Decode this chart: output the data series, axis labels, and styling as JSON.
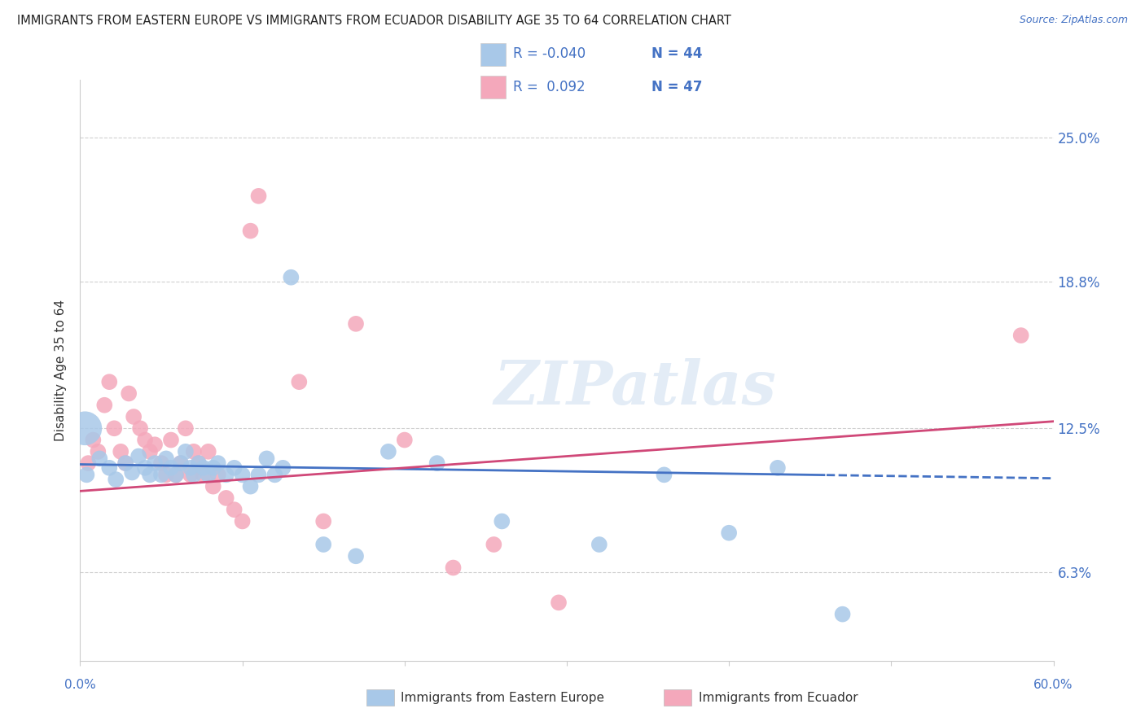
{
  "title": "IMMIGRANTS FROM EASTERN EUROPE VS IMMIGRANTS FROM ECUADOR DISABILITY AGE 35 TO 64 CORRELATION CHART",
  "source": "Source: ZipAtlas.com",
  "ylabel": "Disability Age 35 to 64",
  "ytick_labels": [
    "6.3%",
    "12.5%",
    "18.8%",
    "25.0%"
  ],
  "ytick_values": [
    6.3,
    12.5,
    18.8,
    25.0
  ],
  "xlim": [
    0.0,
    60.0
  ],
  "ylim": [
    2.5,
    27.5
  ],
  "legend_blue_r": "-0.040",
  "legend_blue_n": "44",
  "legend_pink_r": "0.092",
  "legend_pink_n": "47",
  "blue_color": "#a8c8e8",
  "pink_color": "#f4a8bb",
  "blue_line_color": "#4472c4",
  "pink_line_color": "#d04878",
  "watermark_text": "ZIPatlas",
  "blue_scatter_x": [
    0.4,
    1.2,
    1.8,
    2.2,
    2.8,
    3.2,
    3.6,
    4.0,
    4.3,
    4.6,
    5.0,
    5.3,
    5.6,
    5.9,
    6.2,
    6.5,
    6.8,
    7.0,
    7.3,
    7.6,
    7.9,
    8.2,
    8.5,
    9.0,
    9.5,
    10.0,
    10.5,
    11.0,
    11.5,
    12.0,
    12.5,
    13.0,
    15.0,
    17.0,
    19.0,
    22.0,
    26.0,
    32.0,
    36.0,
    40.0,
    43.0,
    47.0,
    0.3
  ],
  "blue_scatter_y": [
    10.5,
    11.2,
    10.8,
    10.3,
    11.0,
    10.6,
    11.3,
    10.8,
    10.5,
    11.0,
    10.5,
    11.2,
    10.8,
    10.5,
    11.0,
    11.5,
    10.8,
    10.5,
    11.0,
    10.8,
    10.5,
    10.8,
    11.0,
    10.5,
    10.8,
    10.5,
    10.0,
    10.5,
    11.2,
    10.5,
    10.8,
    19.0,
    7.5,
    7.0,
    11.5,
    11.0,
    8.5,
    7.5,
    10.5,
    8.0,
    10.8,
    4.5,
    12.5
  ],
  "blue_scatter_size": [
    150,
    150,
    150,
    150,
    150,
    150,
    150,
    150,
    150,
    150,
    150,
    150,
    150,
    150,
    150,
    150,
    150,
    150,
    150,
    150,
    150,
    150,
    150,
    150,
    150,
    150,
    150,
    150,
    150,
    150,
    150,
    150,
    150,
    150,
    150,
    150,
    150,
    150,
    150,
    150,
    150,
    150,
    900
  ],
  "pink_scatter_x": [
    0.5,
    0.8,
    1.1,
    1.5,
    1.8,
    2.1,
    2.5,
    2.8,
    3.0,
    3.3,
    3.7,
    4.0,
    4.3,
    4.6,
    5.0,
    5.3,
    5.6,
    5.9,
    6.2,
    6.5,
    6.8,
    7.0,
    7.3,
    7.6,
    7.9,
    8.2,
    8.5,
    9.0,
    9.5,
    10.0,
    10.5,
    11.0,
    13.5,
    15.0,
    17.0,
    20.0,
    23.0,
    25.5,
    29.5,
    58.0
  ],
  "pink_scatter_y": [
    11.0,
    12.0,
    11.5,
    13.5,
    14.5,
    12.5,
    11.5,
    11.0,
    14.0,
    13.0,
    12.5,
    12.0,
    11.5,
    11.8,
    11.0,
    10.5,
    12.0,
    10.5,
    11.0,
    12.5,
    10.5,
    11.5,
    11.0,
    10.5,
    11.5,
    10.0,
    10.5,
    9.5,
    9.0,
    8.5,
    21.0,
    22.5,
    14.5,
    8.5,
    17.0,
    12.0,
    6.5,
    7.5,
    5.0,
    16.5
  ],
  "blue_line_y_at_0": 10.95,
  "blue_line_y_at_60": 10.35,
  "blue_solid_end_x": 46.0,
  "pink_line_y_at_0": 9.8,
  "pink_line_y_at_60": 12.8,
  "xtick_positions": [
    0,
    10,
    20,
    30,
    40,
    50,
    60
  ]
}
